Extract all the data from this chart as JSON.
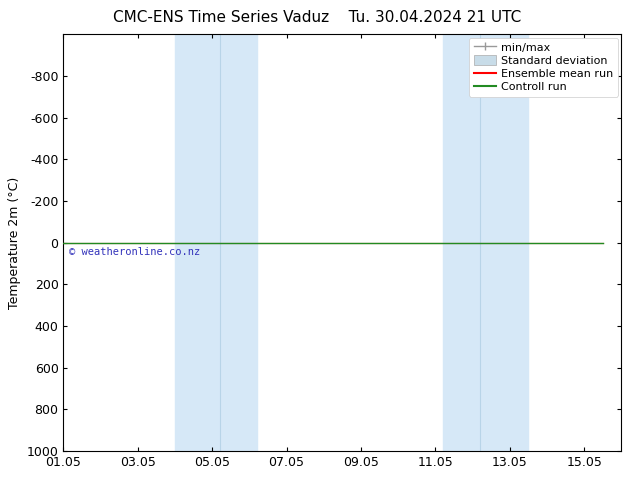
{
  "title_left": "CMC-ENS Time Series Vaduz",
  "title_right": "Tu. 30.04.2024 21 UTC",
  "ylabel": "Temperature 2m (°C)",
  "ylim_bottom": 1000,
  "ylim_top": -1000,
  "ytick_vals": [
    1000,
    800,
    600,
    400,
    200,
    0,
    -200,
    -400,
    -600,
    -800
  ],
  "xlim_min": 0,
  "xlim_max": 15,
  "xtick_positions": [
    0,
    2,
    4,
    6,
    8,
    10,
    12,
    14
  ],
  "xtick_labels": [
    "01.05",
    "03.05",
    "05.05",
    "07.05",
    "09.05",
    "11.05",
    "13.05",
    "15.05"
  ],
  "band1_start": 3.0,
  "band1_mid": 4.2,
  "band1_end": 5.2,
  "band2_start": 10.2,
  "band2_mid": 11.2,
  "band2_end": 12.5,
  "band_color": "#d6e8f7",
  "band_sep_color": "#b8d4e8",
  "control_run_color": "#228B22",
  "ensemble_mean_color": "#ff0000",
  "minmax_color": "#999999",
  "std_dev_color": "#c8dce8",
  "std_dev_edge_color": "#aaaaaa",
  "watermark": "© weatheronline.co.nz",
  "watermark_color": "#3333bb",
  "background_color": "#ffffff",
  "legend_entries": [
    "min/max",
    "Standard deviation",
    "Ensemble mean run",
    "Controll run"
  ],
  "legend_line_colors": [
    "#999999",
    "#c8dce8",
    "#ff0000",
    "#228B22"
  ],
  "title_fontsize": 11,
  "axis_label_fontsize": 9,
  "tick_fontsize": 9,
  "legend_fontsize": 8
}
